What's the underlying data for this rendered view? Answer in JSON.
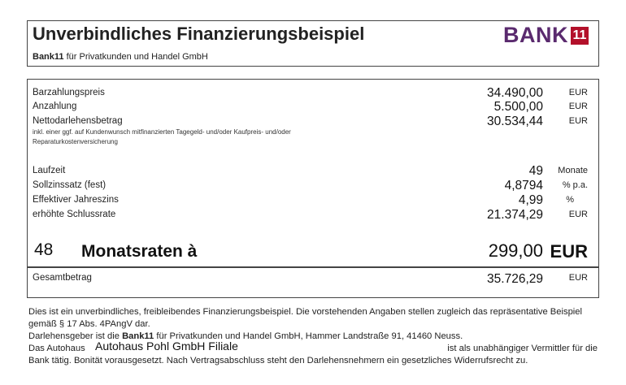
{
  "header": {
    "title": "Unverbindliches Finanzierungsbeispiel",
    "subtitle_bold": "Bank11",
    "subtitle_rest": " für Privatkunden und Handel GmbH",
    "logo_word": "BANK",
    "logo_badge": "11",
    "logo_colors": {
      "word": "#5a2a6e",
      "badge": "#b3102a"
    }
  },
  "rows": [
    {
      "label": "Barzahlungspreis",
      "value": "34.490,00",
      "unit": "EUR"
    },
    {
      "label": "Anzahlung",
      "value": "5.500,00",
      "unit": "EUR"
    },
    {
      "label": "Nettodarlehensbetrag",
      "value": "30.534,44",
      "unit": "EUR",
      "note": "inkl. einer ggf. auf Kundenwunsch mitfinanzierten Tagegeld- und/oder Kaufpreis- und/oder Reparaturkostenversicherung"
    },
    {
      "label": "Laufzeit",
      "value": "49",
      "unit": "Monate"
    },
    {
      "label": "Sollzinssatz (fest)",
      "value": "4,8794",
      "unit": "% p.a."
    },
    {
      "label": "Effektiver Jahreszins",
      "value": "4,99",
      "unit": "%"
    },
    {
      "label": "erhöhte Schlussrate",
      "value": "21.374,29",
      "unit": "EUR"
    }
  ],
  "rate": {
    "count": "48",
    "label": "Monatsraten à",
    "value": "299,00",
    "unit": "EUR"
  },
  "total": {
    "label": "Gesamtbetrag",
    "value": "35.726,29",
    "unit": "EUR"
  },
  "footer": {
    "line1": "Dies ist ein unverbindliches, freibleibendes Finanzierungsbeispiel. Die vorstehenden Angaben stellen zugleich das repräsentative Beispiel gemäß § 17 Abs. 4PAngV dar.",
    "line2_pre": "Darlehensgeber ist die ",
    "line2_bold": "Bank11",
    "line2_post": " für Privatkunden und Handel GmbH, Hammer Landstraße 91, 41460 Neuss.",
    "dealer_pre": "Das Autohaus",
    "dealer_name": "Autohaus Pohl GmbH Filiale",
    "dealer_post": "ist als unabhängiger Vermittler für die",
    "line4": "Bank tätig. Bonität vorausgesetzt. Nach Vertragsabschluss steht den Darlehensnehmern ein gesetzliches Widerrufsrecht zu."
  }
}
